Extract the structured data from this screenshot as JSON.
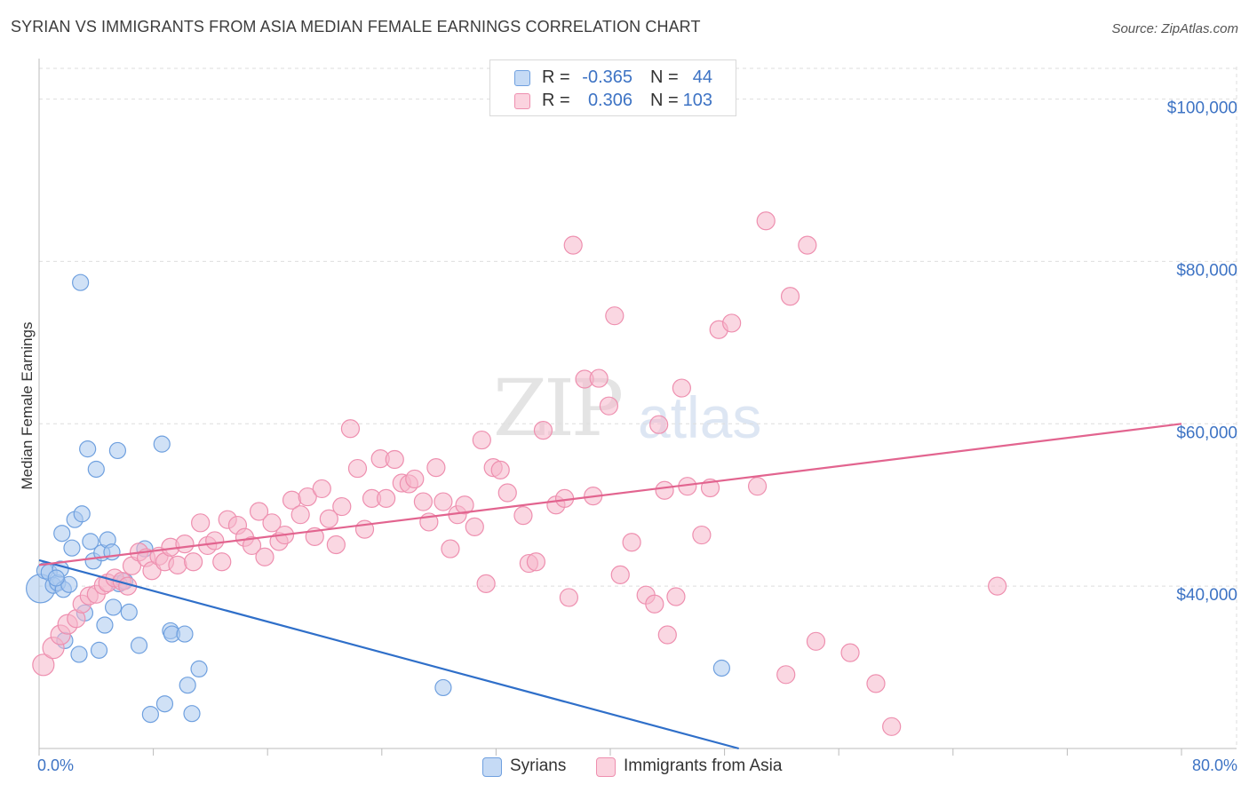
{
  "header": {
    "title": "SYRIAN VS IMMIGRANTS FROM ASIA MEDIAN FEMALE EARNINGS CORRELATION CHART",
    "source": "Source: ZipAtlas.com"
  },
  "watermark": {
    "zip": "ZIP",
    "atlas": "atlas"
  },
  "legend_top": {
    "rows": [
      {
        "r_label": "R =",
        "r_value": "-0.365",
        "n_label": "N =",
        "n_value": "44",
        "color": "#a9c8ef"
      },
      {
        "r_label": "R =",
        "r_value": "0.306",
        "n_label": "N =",
        "n_value": "103",
        "color": "#f6b7ca"
      }
    ]
  },
  "legend_bottom": {
    "items": [
      {
        "label": "Syrians",
        "color": "#a9c8ef"
      },
      {
        "label": "Immigrants from Asia",
        "color": "#f6b7ca"
      }
    ]
  },
  "chart_data": {
    "type": "scatter",
    "title": "SYRIAN VS IMMIGRANTS FROM ASIA MEDIAN FEMALE EARNINGS CORRELATION CHART",
    "ylabel": "Median Female Earnings",
    "xlabel": "",
    "xlim": [
      0,
      80
    ],
    "ylim": [
      20000,
      104000
    ],
    "x_ticks": [
      "0.0%",
      "80.0%"
    ],
    "y_ticks": [
      {
        "value": 40000,
        "label": "$40,000"
      },
      {
        "value": 60000,
        "label": "$60,000"
      },
      {
        "value": 80000,
        "label": "$80,000"
      },
      {
        "value": 100000,
        "label": "$100,000"
      }
    ],
    "grid": true,
    "legend_placement": "top-center",
    "series": [
      {
        "name": "Syrians",
        "color": "#a9c8ef",
        "stroke": "#6fa0df",
        "line_color": "#2f6fc9",
        "trend": {
          "x": [
            0,
            49
          ],
          "y": [
            43200,
            20000
          ]
        },
        "points": [
          [
            0.1,
            39.7,
            16
          ],
          [
            0.4,
            41.9,
            9
          ],
          [
            0.7,
            41.7,
            9
          ],
          [
            1.0,
            40.1,
            9
          ],
          [
            1.3,
            40.4,
            9
          ],
          [
            1.5,
            42.1,
            9
          ],
          [
            1.6,
            46.5,
            9
          ],
          [
            1.7,
            39.6,
            9
          ],
          [
            1.8,
            33.3,
            9
          ],
          [
            2.1,
            40.2,
            9
          ],
          [
            2.3,
            44.7,
            9
          ],
          [
            2.5,
            48.2,
            9
          ],
          [
            2.8,
            31.6,
            9
          ],
          [
            3.0,
            48.9,
            9
          ],
          [
            2.9,
            77.4,
            9
          ],
          [
            3.2,
            36.7,
            9
          ],
          [
            3.4,
            56.9,
            9
          ],
          [
            3.6,
            45.5,
            9
          ],
          [
            3.8,
            43.1,
            9
          ],
          [
            4.0,
            54.4,
            9
          ],
          [
            4.2,
            32.1,
            9
          ],
          [
            4.4,
            44.1,
            9
          ],
          [
            4.6,
            35.2,
            9
          ],
          [
            4.8,
            45.7,
            9
          ],
          [
            5.1,
            44.2,
            9
          ],
          [
            5.2,
            37.4,
            9
          ],
          [
            5.5,
            56.7,
            9
          ],
          [
            5.6,
            40.3,
            9
          ],
          [
            6.0,
            40.6,
            9
          ],
          [
            6.3,
            36.8,
            9
          ],
          [
            7.0,
            32.7,
            9
          ],
          [
            7.4,
            44.6,
            9
          ],
          [
            7.8,
            24.2,
            9
          ],
          [
            8.6,
            57.5,
            9
          ],
          [
            8.8,
            25.5,
            9
          ],
          [
            9.2,
            34.5,
            9
          ],
          [
            9.3,
            34.1,
            9
          ],
          [
            10.2,
            34.1,
            9
          ],
          [
            10.4,
            27.8,
            9
          ],
          [
            10.7,
            24.3,
            9
          ],
          [
            11.2,
            29.8,
            9
          ],
          [
            28.3,
            27.5,
            9
          ],
          [
            47.8,
            29.9,
            9
          ],
          [
            1.2,
            41.0,
            9
          ]
        ]
      },
      {
        "name": "Immigrants from Asia",
        "color": "#f6b7ca",
        "stroke": "#ee8faf",
        "line_color": "#e2648f",
        "trend": {
          "x": [
            0,
            80
          ],
          "y": [
            42600,
            60000
          ]
        },
        "points": [
          [
            0.3,
            30.3,
            12
          ],
          [
            1.0,
            32.4,
            12
          ],
          [
            1.5,
            34.0,
            11
          ],
          [
            2.0,
            35.3,
            11
          ],
          [
            2.6,
            36.0,
            10
          ],
          [
            3.0,
            37.8,
            10
          ],
          [
            3.5,
            38.8,
            10
          ],
          [
            4.0,
            39.0,
            10
          ],
          [
            4.5,
            40.1,
            10
          ],
          [
            4.8,
            40.4,
            10
          ],
          [
            5.3,
            41.0,
            10
          ],
          [
            5.8,
            40.6,
            10
          ],
          [
            6.2,
            40.0,
            10
          ],
          [
            6.5,
            42.5,
            10
          ],
          [
            7.0,
            44.2,
            10
          ],
          [
            7.5,
            43.5,
            10
          ],
          [
            7.9,
            41.9,
            10
          ],
          [
            8.4,
            43.7,
            10
          ],
          [
            8.8,
            43.0,
            10
          ],
          [
            9.2,
            44.8,
            10
          ],
          [
            9.7,
            42.6,
            10
          ],
          [
            10.2,
            45.2,
            10
          ],
          [
            10.8,
            43.0,
            10
          ],
          [
            11.3,
            47.8,
            10
          ],
          [
            11.8,
            45.0,
            10
          ],
          [
            12.3,
            45.6,
            10
          ],
          [
            12.8,
            43.0,
            10
          ],
          [
            13.2,
            48.2,
            10
          ],
          [
            13.9,
            47.5,
            10
          ],
          [
            14.4,
            46.0,
            10
          ],
          [
            14.9,
            45.0,
            10
          ],
          [
            15.4,
            49.2,
            10
          ],
          [
            15.8,
            43.6,
            10
          ],
          [
            16.3,
            47.8,
            10
          ],
          [
            16.8,
            45.5,
            10
          ],
          [
            17.2,
            46.3,
            10
          ],
          [
            17.7,
            50.6,
            10
          ],
          [
            18.3,
            48.8,
            10
          ],
          [
            18.8,
            51.0,
            10
          ],
          [
            19.3,
            46.1,
            10
          ],
          [
            19.8,
            52.0,
            10
          ],
          [
            20.3,
            48.3,
            10
          ],
          [
            20.8,
            45.1,
            10
          ],
          [
            21.2,
            49.8,
            10
          ],
          [
            21.8,
            59.4,
            10
          ],
          [
            22.3,
            54.5,
            10
          ],
          [
            22.8,
            47.0,
            10
          ],
          [
            23.3,
            50.8,
            10
          ],
          [
            23.9,
            55.7,
            10
          ],
          [
            24.3,
            50.8,
            10
          ],
          [
            24.9,
            55.6,
            10
          ],
          [
            25.4,
            52.7,
            10
          ],
          [
            25.9,
            52.6,
            10
          ],
          [
            26.3,
            53.2,
            10
          ],
          [
            26.9,
            50.4,
            10
          ],
          [
            27.3,
            47.9,
            10
          ],
          [
            27.8,
            54.6,
            10
          ],
          [
            28.3,
            50.4,
            10
          ],
          [
            28.8,
            44.6,
            10
          ],
          [
            29.3,
            48.8,
            10
          ],
          [
            29.8,
            50.0,
            10
          ],
          [
            30.5,
            47.3,
            10
          ],
          [
            31.0,
            58.0,
            10
          ],
          [
            31.3,
            40.3,
            10
          ],
          [
            31.8,
            54.6,
            10
          ],
          [
            32.3,
            54.3,
            10
          ],
          [
            32.8,
            51.5,
            10
          ],
          [
            33.9,
            48.7,
            10
          ],
          [
            34.3,
            42.8,
            10
          ],
          [
            34.8,
            43.0,
            10
          ],
          [
            35.3,
            59.2,
            10
          ],
          [
            36.2,
            50.0,
            10
          ],
          [
            36.8,
            50.8,
            10
          ],
          [
            37.1,
            38.6,
            10
          ],
          [
            37.4,
            82.0,
            10
          ],
          [
            38.2,
            65.5,
            10
          ],
          [
            38.8,
            51.1,
            10
          ],
          [
            39.2,
            65.6,
            10
          ],
          [
            39.9,
            62.2,
            10
          ],
          [
            40.3,
            73.3,
            10
          ],
          [
            40.7,
            41.4,
            10
          ],
          [
            41.5,
            45.4,
            10
          ],
          [
            42.5,
            38.9,
            10
          ],
          [
            43.4,
            59.9,
            10
          ],
          [
            43.8,
            51.8,
            10
          ],
          [
            44.6,
            38.7,
            10
          ],
          [
            45.0,
            64.4,
            10
          ],
          [
            45.4,
            52.3,
            10
          ],
          [
            43.1,
            37.8,
            10
          ],
          [
            44.0,
            34.0,
            10
          ],
          [
            46.4,
            46.3,
            10
          ],
          [
            47.6,
            71.6,
            10
          ],
          [
            47.0,
            52.1,
            10
          ],
          [
            48.5,
            72.4,
            10
          ],
          [
            50.3,
            52.3,
            10
          ],
          [
            50.9,
            85.0,
            10
          ],
          [
            52.3,
            29.1,
            10
          ],
          [
            52.6,
            75.7,
            10
          ],
          [
            53.8,
            82.0,
            10
          ],
          [
            54.4,
            33.2,
            10
          ],
          [
            56.8,
            31.8,
            10
          ],
          [
            58.6,
            28.0,
            10
          ],
          [
            59.7,
            22.7,
            10
          ],
          [
            67.1,
            40.0,
            10
          ]
        ]
      }
    ]
  }
}
